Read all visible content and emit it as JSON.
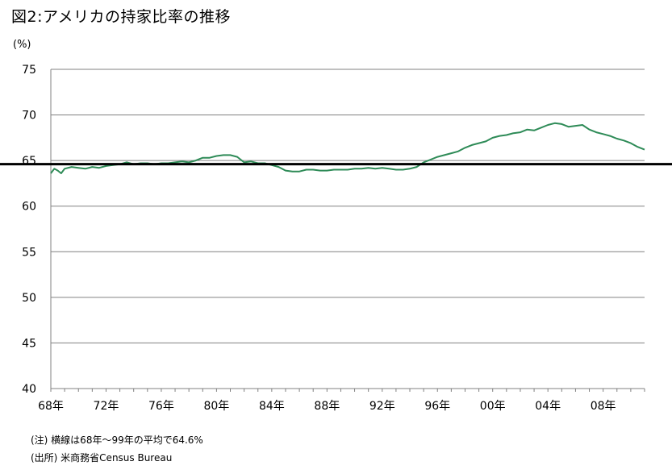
{
  "title": "図2:アメリカの持家比率の推移",
  "unit_label": "(%)",
  "notes": [
    "(注) 横線は68年～99年の平均で64.6%",
    "(出所) 米商務省Census Bureau"
  ],
  "colors": {
    "series": "#2e8b57",
    "reference": "#000000",
    "grid": "#808080"
  },
  "chart_data": {
    "type": "line",
    "title": "図2:アメリカの持家比率の推移",
    "xlabel": "",
    "ylabel": "(%)",
    "ylim": [
      40,
      75
    ],
    "yticks": [
      40,
      45,
      50,
      55,
      60,
      65,
      70,
      75
    ],
    "grid": "horizontal",
    "xlim": [
      1968,
      2011
    ],
    "x_tick_years": [
      1968,
      1972,
      1976,
      1980,
      1984,
      1988,
      1992,
      1996,
      2000,
      2004,
      2008
    ],
    "x_tick_labels": [
      "68年",
      "72年",
      "76年",
      "80年",
      "84年",
      "88年",
      "92年",
      "96年",
      "00年",
      "04年",
      "08年"
    ],
    "reference_line": {
      "value": 64.6
    },
    "series": [
      {
        "x": [
          1968.0,
          1968.25,
          1968.5,
          1968.75,
          1969.0,
          1969.5,
          1970.0,
          1970.5,
          1971.0,
          1971.5,
          1972.0,
          1972.5,
          1973.0,
          1973.5,
          1974.0,
          1974.5,
          1975.0,
          1975.5,
          1976.0,
          1976.5,
          1977.0,
          1977.5,
          1978.0,
          1978.5,
          1979.0,
          1979.5,
          1980.0,
          1980.5,
          1981.0,
          1981.5,
          1982.0,
          1982.5,
          1983.0,
          1983.5,
          1984.0,
          1984.5,
          1985.0,
          1985.5,
          1986.0,
          1986.5,
          1987.0,
          1987.5,
          1988.0,
          1988.5,
          1989.0,
          1989.5,
          1990.0,
          1990.5,
          1991.0,
          1991.5,
          1992.0,
          1992.5,
          1993.0,
          1993.5,
          1994.0,
          1994.5,
          1995.0,
          1995.5,
          1996.0,
          1996.5,
          1997.0,
          1997.5,
          1998.0,
          1998.5,
          1999.0,
          1999.5,
          2000.0,
          2000.5,
          2001.0,
          2001.5,
          2002.0,
          2002.5,
          2003.0,
          2003.5,
          2004.0,
          2004.5,
          2005.0,
          2005.5,
          2006.0,
          2006.5,
          2007.0,
          2007.5,
          2008.0,
          2008.5,
          2009.0,
          2009.5,
          2010.0,
          2010.5,
          2011.0
        ],
        "values": [
          63.6,
          64.1,
          63.9,
          63.6,
          64.1,
          64.3,
          64.2,
          64.1,
          64.3,
          64.2,
          64.4,
          64.5,
          64.6,
          64.8,
          64.6,
          64.7,
          64.7,
          64.6,
          64.7,
          64.7,
          64.8,
          64.9,
          64.8,
          65.0,
          65.3,
          65.3,
          65.5,
          65.6,
          65.6,
          65.4,
          64.8,
          64.9,
          64.7,
          64.7,
          64.5,
          64.3,
          63.9,
          63.8,
          63.8,
          64.0,
          64.0,
          63.9,
          63.9,
          64.0,
          64.0,
          64.0,
          64.1,
          64.1,
          64.2,
          64.1,
          64.2,
          64.1,
          64.0,
          64.0,
          64.1,
          64.3,
          64.8,
          65.1,
          65.4,
          65.6,
          65.8,
          66.0,
          66.4,
          66.7,
          66.9,
          67.1,
          67.5,
          67.7,
          67.8,
          68.0,
          68.1,
          68.4,
          68.3,
          68.6,
          68.9,
          69.1,
          69.0,
          68.7,
          68.8,
          68.9,
          68.4,
          68.1,
          67.9,
          67.7,
          67.4,
          67.2,
          66.9,
          66.5,
          66.2
        ]
      }
    ]
  }
}
